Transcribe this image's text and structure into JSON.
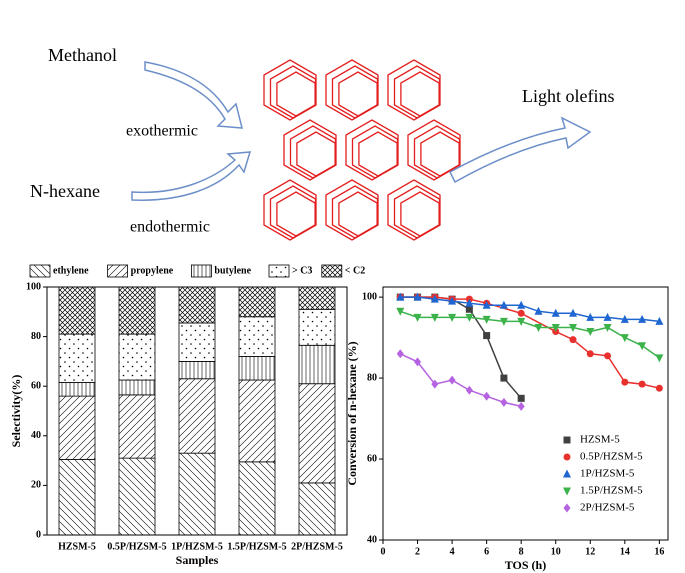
{
  "diagram": {
    "labels": [
      "Methanol",
      "exothermic",
      "N-hexane",
      "endothermic",
      "Light olefins"
    ]
  },
  "chart_data": [
    {
      "type": "bar",
      "stacked": true,
      "xlabel": "Samples",
      "ylabel": "Selectivity(%)",
      "categories": [
        "HZSM-5",
        "0.5P/HZSM-5",
        "1P/HZSM-5",
        "1.5P/HZSM-5",
        "2P/HZSM-5"
      ],
      "ylim": [
        0,
        100
      ],
      "yticks": [
        0,
        20,
        40,
        60,
        80,
        100
      ],
      "legend": "top",
      "series": [
        {
          "name": "ethylene",
          "pattern": "backslash",
          "color": "#000000",
          "values": [
            30.5,
            31,
            33,
            29.5,
            21
          ]
        },
        {
          "name": "propylene",
          "pattern": "slash",
          "color": "#000000",
          "values": [
            25.5,
            25.5,
            30,
            33,
            40
          ]
        },
        {
          "name": "butylene",
          "pattern": "vertical",
          "color": "#000000",
          "values": [
            5.5,
            6,
            7,
            9.5,
            15.5
          ]
        },
        {
          "name": "> C3",
          "pattern": "dots",
          "color": "#000000",
          "values": [
            19.5,
            18.5,
            15.5,
            16,
            14.5
          ]
        },
        {
          "name": "< C2",
          "pattern": "crosshatch",
          "color": "#000000",
          "values": [
            19,
            19,
            14.5,
            12,
            9
          ]
        }
      ]
    },
    {
      "type": "scatter",
      "line": true,
      "xlabel": "TOS (h)",
      "ylabel": "Conversion of n-hexane (%)",
      "xlim": [
        0,
        16.5
      ],
      "xticks": [
        0,
        2,
        4,
        6,
        8,
        10,
        12,
        14,
        16
      ],
      "ylim": [
        40,
        102.5
      ],
      "yticks": [
        40,
        60,
        80,
        100
      ],
      "legend": "lower right",
      "series": [
        {
          "name": "HZSM-5",
          "color": "#404040",
          "marker": "square",
          "x": [
            1,
            2,
            3,
            4,
            5,
            6,
            7,
            8
          ],
          "values": [
            100,
            100,
            100,
            99.5,
            97,
            90.5,
            80,
            75
          ]
        },
        {
          "name": "0.5P/HZSM-5",
          "color": "#e8312f",
          "marker": "circle",
          "x": [
            1,
            2,
            3,
            4,
            5,
            6,
            8,
            10,
            11,
            12,
            13,
            14,
            15,
            16
          ],
          "values": [
            100,
            100,
            100,
            99.5,
            99.5,
            98.5,
            96,
            91.5,
            89.5,
            86,
            85.5,
            79,
            78.5,
            77.5
          ]
        },
        {
          "name": "1P/HZSM-5",
          "color": "#1f66d1",
          "marker": "triangle",
          "x": [
            1,
            2,
            3,
            4,
            5,
            6,
            7,
            8,
            9,
            10,
            11,
            12,
            13,
            14,
            15,
            16
          ],
          "values": [
            100,
            100,
            99.5,
            99,
            98.5,
            98,
            98,
            98,
            96.5,
            96,
            96,
            95,
            95,
            94.5,
            94.5,
            94
          ]
        },
        {
          "name": "1.5P/HZSM-5",
          "color": "#3bb24a",
          "marker": "triangle-down",
          "x": [
            1,
            2,
            3,
            4,
            5,
            6,
            7,
            8,
            9,
            10,
            11,
            12,
            13,
            14,
            15,
            16
          ],
          "values": [
            96.5,
            95,
            95,
            95,
            95,
            94.5,
            94,
            94,
            92.5,
            92.5,
            92.5,
            91.5,
            92.5,
            90,
            88,
            85
          ]
        },
        {
          "name": "2P/HZSM-5",
          "color": "#b563e0",
          "marker": "diamond",
          "x": [
            1,
            2,
            3,
            4,
            5,
            6,
            7,
            8
          ],
          "values": [
            86,
            84,
            78.5,
            79.5,
            77,
            75.5,
            74,
            73
          ]
        }
      ]
    }
  ]
}
